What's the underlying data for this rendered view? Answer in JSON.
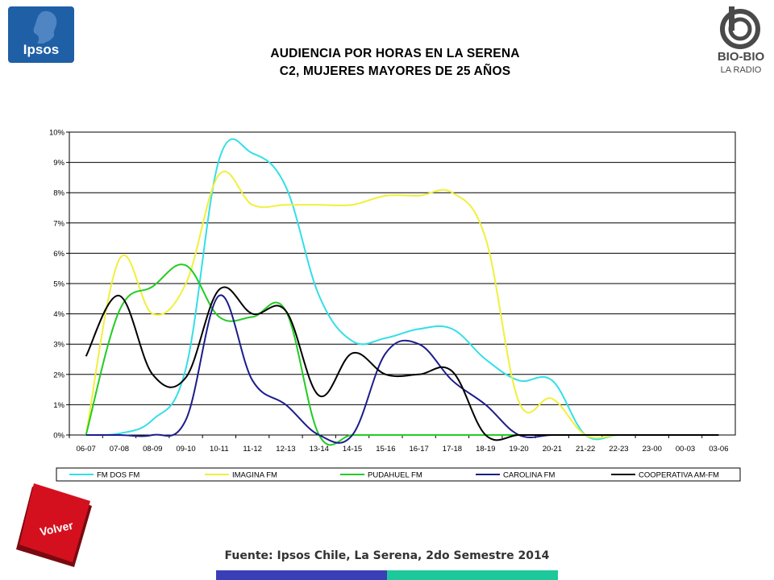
{
  "header": {
    "title_line1": "AUDIENCIA POR HORAS EN LA SERENA",
    "title_line2": "C2, MUJERES MAYORES DE 25 AÑOS",
    "left_logo_text": "Ipsos",
    "right_logo_name": "BIO-BIO",
    "right_logo_sub": "LA RADIO"
  },
  "footer": {
    "source": "Fuente: Ipsos Chile, La Serena, 2do Semestre 2014",
    "back_button_label": "Volver"
  },
  "colors": {
    "blue_bar": "#3a3fb8",
    "green_bar": "#1dc99a",
    "volver_red": "#d4101f",
    "ipsos_blue": "#1f5fa6"
  },
  "chart_data": {
    "type": "line",
    "title": "",
    "xlabel": "",
    "ylabel": "",
    "categories": [
      "06-07",
      "07-08",
      "08-09",
      "09-10",
      "10-11",
      "11-12",
      "12-13",
      "13-14",
      "14-15",
      "15-16",
      "16-17",
      "17-18",
      "18-19",
      "19-20",
      "20-21",
      "21-22",
      "22-23",
      "23-00",
      "00-03",
      "03-06"
    ],
    "yticks": [
      "0%",
      "1%",
      "2%",
      "3%",
      "4%",
      "5%",
      "6%",
      "7%",
      "8%",
      "9%",
      "10%"
    ],
    "ylim": [
      0,
      10
    ],
    "grid": true,
    "legend_position": "bottom",
    "series": [
      {
        "name": "FM DOS FM",
        "color": "#33dfe6",
        "values": [
          0,
          0.05,
          0.5,
          2.2,
          9.1,
          9.3,
          8.2,
          4.6,
          3.1,
          3.2,
          3.5,
          3.5,
          2.5,
          1.8,
          1.8,
          0,
          0,
          0,
          0,
          0
        ]
      },
      {
        "name": "IMAGINA FM",
        "color": "#f0f03c",
        "values": [
          0,
          5.8,
          4.0,
          5.0,
          8.6,
          7.6,
          7.6,
          7.6,
          7.6,
          7.9,
          7.9,
          8.0,
          6.5,
          1.1,
          1.2,
          0,
          0,
          0,
          0,
          0
        ]
      },
      {
        "name": "PUDAHUEL FM",
        "color": "#22cc22",
        "values": [
          0,
          4.1,
          4.9,
          5.6,
          3.9,
          3.9,
          4.1,
          0,
          0,
          0,
          0,
          0,
          0,
          0,
          0,
          0,
          0,
          0,
          0,
          0
        ]
      },
      {
        "name": "CAROLINA FM",
        "color": "#1c1c8c",
        "values": [
          0,
          0,
          0,
          0.5,
          4.6,
          1.8,
          1.0,
          0,
          0,
          2.7,
          3.0,
          1.8,
          1.0,
          0,
          0,
          0,
          0,
          0,
          0,
          0
        ]
      },
      {
        "name": "COOPERATIVA AM-FM",
        "color": "#000000",
        "values": [
          2.6,
          4.6,
          2.0,
          1.9,
          4.8,
          4.0,
          4.1,
          1.3,
          2.7,
          2.0,
          2.0,
          2.1,
          0,
          0,
          0,
          0,
          0,
          0,
          0,
          0
        ]
      }
    ]
  }
}
